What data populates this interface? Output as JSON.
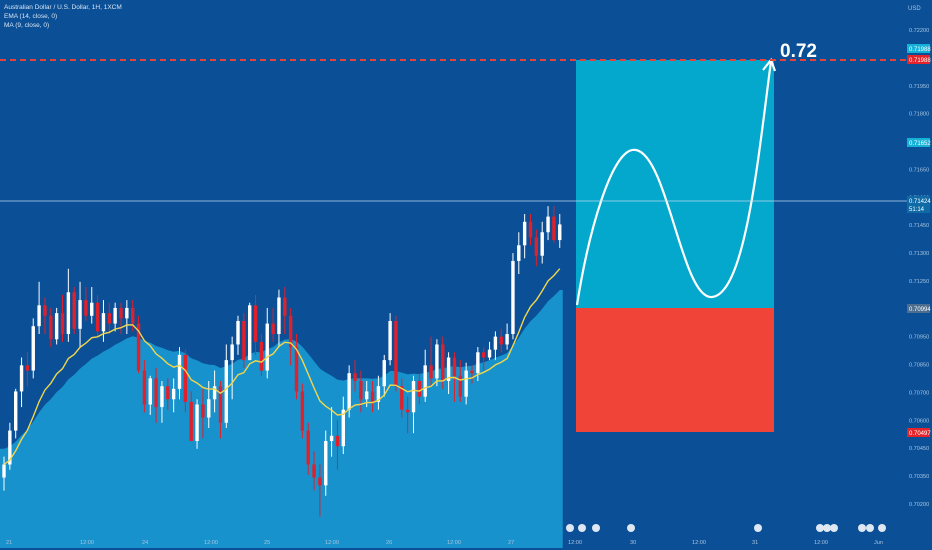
{
  "legend": {
    "symbol": "Australian Dollar / U.S. Dollar, 1H, 1XCM",
    "ema": "EMA (14, close, 0)",
    "ma": "MA (9, close, 0)"
  },
  "currency": "USD",
  "annotation": {
    "target_label": "0.72"
  },
  "price_tags": {
    "top_cyan": "0.71988",
    "top_red": "0.71988",
    "mid_cyan": "0.71652",
    "current_price": "0.71424",
    "countdown": "51:14",
    "gray": "0.70994",
    "bottom_red": "0.70497"
  },
  "colors": {
    "background": "#0b4f96",
    "up_candle": "#ffffff",
    "down_candle": "#e0202a",
    "ema": "#f2d64b",
    "area": "#1a9ed6",
    "target_zone": "#04a8cc",
    "stop_zone": "#f04438",
    "dashed_line": "#e8413a"
  },
  "chart_data": {
    "type": "candlestick",
    "ylim": [
      0.7018,
      0.7228
    ],
    "y_ticks": [
      "0.72200",
      "0.72000",
      "0.71950",
      "0.71800",
      "0.71750",
      "0.71650",
      "0.71600",
      "0.71450",
      "0.71300",
      "0.71250",
      "0.71100",
      "0.70950",
      "0.70850",
      "0.70700",
      "0.70600",
      "0.70450",
      "0.70350",
      "0.70200"
    ],
    "x_labels": [
      "21",
      "12:00",
      "24",
      "12:00",
      "25",
      "12:00",
      "26",
      "12:00",
      "27",
      "12:00",
      "30",
      "12:00",
      "31",
      "12:00",
      "Jun"
    ],
    "candles": [
      [
        0.7045,
        0.705,
        0.704,
        0.7053
      ],
      [
        0.705,
        0.7063,
        0.7048,
        0.7066
      ],
      [
        0.7063,
        0.7078,
        0.706,
        0.7079
      ],
      [
        0.7078,
        0.7088,
        0.7072,
        0.7091
      ],
      [
        0.7088,
        0.7086,
        0.708,
        0.7093
      ],
      [
        0.7086,
        0.7103,
        0.7083,
        0.7106
      ],
      [
        0.7103,
        0.7111,
        0.71,
        0.712
      ],
      [
        0.7111,
        0.7107,
        0.71,
        0.7114
      ],
      [
        0.7107,
        0.7098,
        0.7095,
        0.711
      ],
      [
        0.7098,
        0.7108,
        0.7096,
        0.711
      ],
      [
        0.7108,
        0.71,
        0.7097,
        0.7115
      ],
      [
        0.71,
        0.7116,
        0.7097,
        0.7125
      ],
      [
        0.7116,
        0.7102,
        0.71,
        0.7118
      ],
      [
        0.7102,
        0.7113,
        0.7095,
        0.712
      ],
      [
        0.7113,
        0.7107,
        0.7105,
        0.7118
      ],
      [
        0.7107,
        0.7112,
        0.7104,
        0.7118
      ],
      [
        0.7112,
        0.7101,
        0.7099,
        0.7115
      ],
      [
        0.7101,
        0.7108,
        0.7097,
        0.7113
      ],
      [
        0.7108,
        0.7104,
        0.71,
        0.7112
      ],
      [
        0.7104,
        0.711,
        0.7101,
        0.7112
      ],
      [
        0.711,
        0.7106,
        0.71,
        0.7112
      ],
      [
        0.7106,
        0.711,
        0.71,
        0.7113
      ],
      [
        0.711,
        0.7104,
        0.7101,
        0.7113
      ],
      [
        0.7104,
        0.7086,
        0.7085,
        0.7107
      ],
      [
        0.7086,
        0.7073,
        0.707,
        0.709
      ],
      [
        0.7073,
        0.7083,
        0.7069,
        0.7084
      ],
      [
        0.7083,
        0.7072,
        0.7066,
        0.7087
      ],
      [
        0.7072,
        0.708,
        0.7066,
        0.7082
      ],
      [
        0.708,
        0.7075,
        0.7071,
        0.7083
      ],
      [
        0.7075,
        0.7079,
        0.707,
        0.7083
      ],
      [
        0.7079,
        0.7092,
        0.7075,
        0.7095
      ],
      [
        0.7092,
        0.7074,
        0.707,
        0.7094
      ],
      [
        0.7074,
        0.7059,
        0.7059,
        0.7078
      ],
      [
        0.7059,
        0.7073,
        0.7056,
        0.7075
      ],
      [
        0.7073,
        0.7068,
        0.706,
        0.7079
      ],
      [
        0.7068,
        0.7075,
        0.7064,
        0.7082
      ],
      [
        0.7075,
        0.708,
        0.707,
        0.7086
      ],
      [
        0.708,
        0.7066,
        0.706,
        0.7082
      ],
      [
        0.7066,
        0.709,
        0.7064,
        0.7096
      ],
      [
        0.709,
        0.7096,
        0.7075,
        0.7099
      ],
      [
        0.7096,
        0.7105,
        0.7092,
        0.7107
      ],
      [
        0.7105,
        0.709,
        0.7087,
        0.7108
      ],
      [
        0.709,
        0.7111,
        0.709,
        0.7112
      ],
      [
        0.7111,
        0.7097,
        0.7092,
        0.7115
      ],
      [
        0.7097,
        0.7086,
        0.7084,
        0.71
      ],
      [
        0.7086,
        0.7104,
        0.7083,
        0.711
      ],
      [
        0.7104,
        0.71,
        0.7097,
        0.711
      ],
      [
        0.71,
        0.7114,
        0.7095,
        0.7117
      ],
      [
        0.7114,
        0.7107,
        0.71,
        0.7118
      ],
      [
        0.7107,
        0.7095,
        0.7088,
        0.711
      ],
      [
        0.7095,
        0.7078,
        0.7075,
        0.71
      ],
      [
        0.7078,
        0.7063,
        0.706,
        0.7081
      ],
      [
        0.7063,
        0.705,
        0.7046,
        0.7066
      ],
      [
        0.705,
        0.7045,
        0.704,
        0.7055
      ],
      [
        0.7045,
        0.7042,
        0.703,
        0.705
      ],
      [
        0.7042,
        0.7059,
        0.7038,
        0.7063
      ],
      [
        0.7059,
        0.7061,
        0.7053,
        0.7072
      ],
      [
        0.7061,
        0.7057,
        0.7048,
        0.7067
      ],
      [
        0.7057,
        0.7071,
        0.7054,
        0.7076
      ],
      [
        0.7071,
        0.7085,
        0.7068,
        0.7088
      ],
      [
        0.7085,
        0.7082,
        0.7078,
        0.709
      ],
      [
        0.7082,
        0.7075,
        0.707,
        0.7086
      ],
      [
        0.7075,
        0.7078,
        0.7072,
        0.7082
      ],
      [
        0.7078,
        0.7074,
        0.707,
        0.7082
      ],
      [
        0.7074,
        0.708,
        0.7071,
        0.7084
      ],
      [
        0.708,
        0.709,
        0.7076,
        0.7092
      ],
      [
        0.709,
        0.7105,
        0.7088,
        0.7108
      ],
      [
        0.7105,
        0.708,
        0.7078,
        0.7107
      ],
      [
        0.708,
        0.7071,
        0.7068,
        0.7083
      ],
      [
        0.7071,
        0.707,
        0.7062,
        0.7076
      ],
      [
        0.707,
        0.7082,
        0.7062,
        0.7084
      ],
      [
        0.7082,
        0.7076,
        0.7073,
        0.7085
      ],
      [
        0.7076,
        0.7088,
        0.7074,
        0.7094
      ],
      [
        0.7088,
        0.7083,
        0.708,
        0.7099
      ],
      [
        0.7083,
        0.7096,
        0.708,
        0.7098
      ],
      [
        0.7096,
        0.7082,
        0.7079,
        0.7099
      ],
      [
        0.7082,
        0.7091,
        0.7077,
        0.7093
      ],
      [
        0.7091,
        0.7084,
        0.7074,
        0.7093
      ],
      [
        0.7084,
        0.7076,
        0.7074,
        0.709
      ],
      [
        0.7076,
        0.7086,
        0.7073,
        0.7089
      ],
      [
        0.7086,
        0.7085,
        0.7081,
        0.7088
      ],
      [
        0.7085,
        0.7093,
        0.7082,
        0.7095
      ],
      [
        0.7093,
        0.7091,
        0.7086,
        0.7095
      ],
      [
        0.7091,
        0.7094,
        0.709,
        0.7097
      ],
      [
        0.7094,
        0.7099,
        0.709,
        0.7101
      ],
      [
        0.7099,
        0.7096,
        0.7093,
        0.7102
      ],
      [
        0.7096,
        0.71,
        0.7094,
        0.7104
      ],
      [
        0.71,
        0.7128,
        0.7098,
        0.7131
      ],
      [
        0.7128,
        0.7134,
        0.7123,
        0.7139
      ],
      [
        0.7134,
        0.7143,
        0.7129,
        0.7146
      ],
      [
        0.7143,
        0.7137,
        0.7134,
        0.7146
      ],
      [
        0.7137,
        0.713,
        0.7126,
        0.714
      ],
      [
        0.713,
        0.7139,
        0.7127,
        0.7143
      ],
      [
        0.7139,
        0.7145,
        0.7136,
        0.7149
      ],
      [
        0.7145,
        0.7136,
        0.7135,
        0.7149
      ],
      [
        0.7136,
        0.7142,
        0.7133,
        0.7146
      ]
    ]
  }
}
